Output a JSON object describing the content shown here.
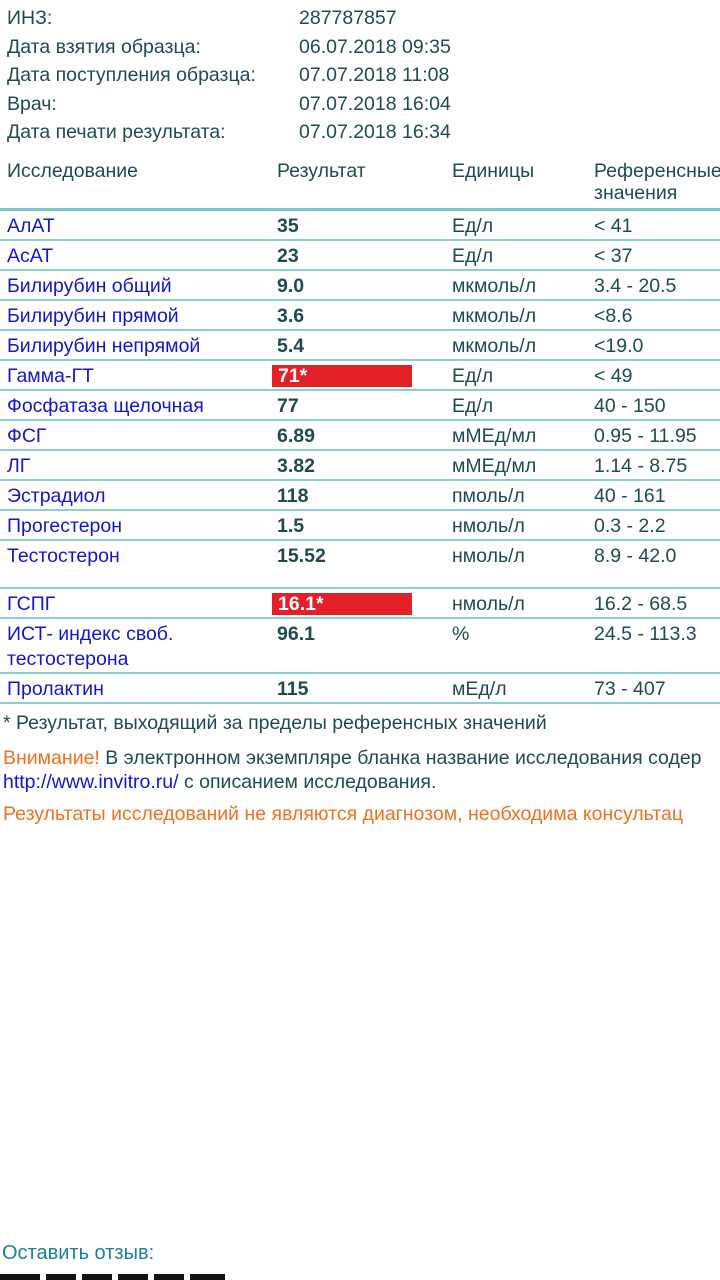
{
  "info": [
    {
      "label": "ИНЗ:",
      "value": "287787857"
    },
    {
      "label": "Дата взятия образца:",
      "value": "06.07.2018 09:35"
    },
    {
      "label": "Дата поступления образца:",
      "value": "07.07.2018 11:08"
    },
    {
      "label": "Врач:",
      "value": "07.07.2018 16:04"
    },
    {
      "label": "Дата печати результата:",
      "value": "07.07.2018 16:34"
    }
  ],
  "table": {
    "headers": {
      "test": "Исследование",
      "result": "Результат",
      "units": "Единицы",
      "ref": "Референсные значения"
    },
    "rows": [
      {
        "test": "АлАТ",
        "result": "35",
        "units": "Ед/л",
        "ref": "< 41"
      },
      {
        "test": "АсАТ",
        "result": "23",
        "units": "Ед/л",
        "ref": "< 37"
      },
      {
        "test": "Билирубин общий",
        "result": "9.0",
        "units": "мкмоль/л",
        "ref": "3.4 - 20.5"
      },
      {
        "test": "Билирубин прямой",
        "result": "3.6",
        "units": "мкмоль/л",
        "ref": "<8.6"
      },
      {
        "test": "Билирубин непрямой",
        "result": "5.4",
        "units": "мкмоль/л",
        "ref": "<19.0"
      },
      {
        "test": "Гамма-ГТ",
        "result": "71*",
        "units": "Ед/л",
        "ref": "< 49",
        "out_of_range": true
      },
      {
        "test": "Фосфатаза щелочная",
        "result": "77",
        "units": "Ед/л",
        "ref": "40 - 150"
      },
      {
        "test": "ФСГ",
        "result": "6.89",
        "units": "мМЕд/мл",
        "ref": "0.95 - 11.95"
      },
      {
        "test": "ЛГ",
        "result": "3.82",
        "units": "мМЕд/мл",
        "ref": "1.14 - 8.75"
      },
      {
        "test": "Эстрадиол",
        "result": "118",
        "units": "пмоль/л",
        "ref": "40 - 161"
      },
      {
        "test": "Прогестерон",
        "result": "1.5",
        "units": "нмоль/л",
        "ref": "0.3 - 2.2"
      },
      {
        "test": "Тестостерон",
        "result": "15.52",
        "units": "нмоль/л",
        "ref": "8.9 - 42.0",
        "tall": true
      },
      {
        "test": "ГСПГ",
        "result": "16.1*",
        "units": "нмоль/л",
        "ref": "16.2 - 68.5",
        "out_of_range": true
      },
      {
        "test": "ИСТ- индекс своб. тестостерона",
        "result": "96.1",
        "units": "%",
        "ref": "24.5 - 113.3"
      },
      {
        "test": "Пролактин",
        "result": "115",
        "units": "мЕд/л",
        "ref": "73 - 407"
      }
    ]
  },
  "footnote": "* Результат, выходящий за пределы референсных значений",
  "warning": {
    "label": "Внимание!",
    "text": " В электронном экземпляре бланка название исследования содер",
    "link": "http://www.invitro.ru/",
    "text2": " с описанием исследования."
  },
  "disclaimer": "Результаты исследований не являются диагнозом, необходима консультац",
  "review": "Оставить отзыв:",
  "colors": {
    "text": "#1f4b50",
    "test_name": "#1414d2",
    "flag": "#e32028",
    "warning": "#f07020",
    "divider": "#8ccdd0"
  }
}
